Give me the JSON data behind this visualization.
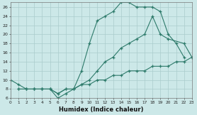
{
  "bg_color": "#cce8e8",
  "grid_color": "#aacccc",
  "line_color": "#2d7a6a",
  "xlabel": "Humidex (Indice chaleur)",
  "xlim": [
    0,
    23
  ],
  "ylim": [
    6,
    27
  ],
  "yticks": [
    6,
    8,
    10,
    12,
    14,
    16,
    18,
    20,
    22,
    24,
    26
  ],
  "xticks": [
    0,
    1,
    2,
    3,
    4,
    5,
    6,
    7,
    8,
    9,
    10,
    11,
    12,
    13,
    14,
    15,
    16,
    17,
    18,
    19,
    20,
    21,
    22,
    23
  ],
  "line_a_x": [
    0,
    1,
    2,
    3,
    4,
    5,
    6,
    7,
    8,
    9,
    10,
    11,
    12,
    13,
    14,
    15,
    16,
    17,
    18,
    19,
    20,
    21,
    22
  ],
  "line_a_y": [
    10,
    9,
    8,
    8,
    8,
    8,
    6,
    7,
    8,
    12,
    18,
    23,
    24,
    25,
    27,
    27,
    26,
    26,
    26,
    25,
    20,
    18,
    15
  ],
  "line_b_x": [
    1,
    2,
    3,
    4,
    5,
    6,
    7,
    8,
    9,
    10,
    11,
    12,
    13,
    14,
    15,
    16,
    17,
    18,
    19,
    20,
    22,
    23
  ],
  "line_b_y": [
    8,
    8,
    8,
    8,
    8,
    7,
    8,
    8,
    9,
    10,
    12,
    14,
    15,
    17,
    18,
    19,
    20,
    24,
    20,
    19,
    18,
    15
  ],
  "line_c_x": [
    1,
    2,
    3,
    4,
    5,
    6,
    7,
    8,
    9,
    10,
    11,
    12,
    13,
    14,
    15,
    16,
    17,
    18,
    19,
    20,
    21,
    22,
    23
  ],
  "line_c_y": [
    8,
    8,
    8,
    8,
    8,
    7,
    8,
    8,
    9,
    9,
    10,
    10,
    11,
    11,
    12,
    12,
    12,
    13,
    13,
    13,
    14,
    14,
    15
  ]
}
